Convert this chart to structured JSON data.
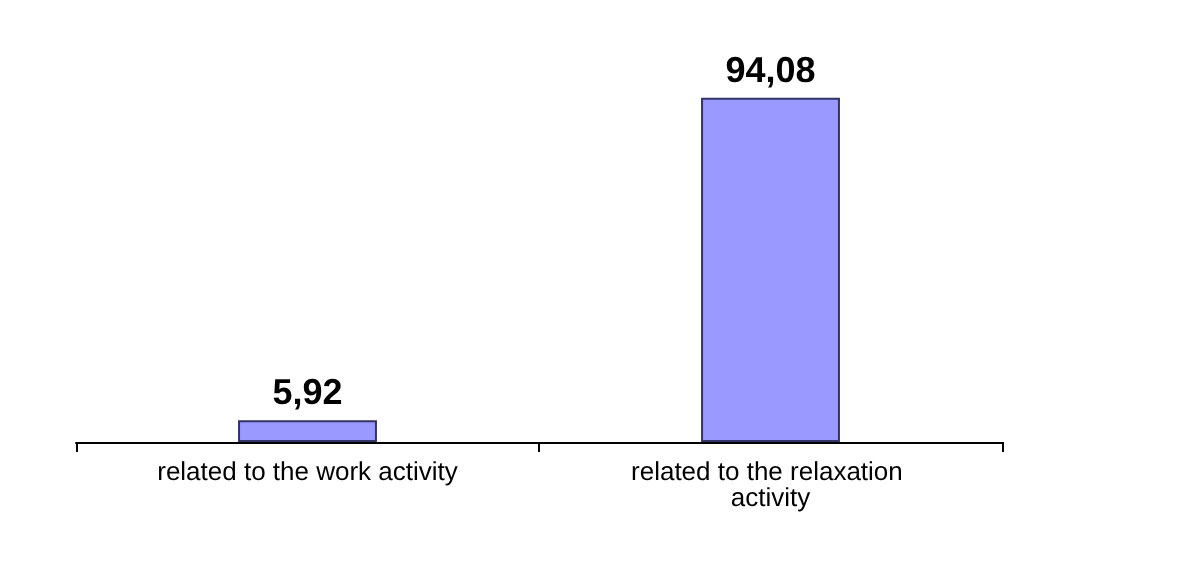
{
  "chart_data": {
    "type": "bar",
    "categories": [
      "related to the work activity",
      "related to the relaxation activity"
    ],
    "values": [
      5.92,
      94.08
    ],
    "value_labels": [
      "5,92",
      "94,08"
    ],
    "color": "#9999ff"
  }
}
